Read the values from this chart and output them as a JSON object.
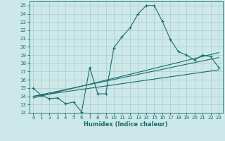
{
  "title": "",
  "xlabel": "Humidex (Indice chaleur)",
  "xlim": [
    -0.5,
    23.5
  ],
  "ylim": [
    12,
    25.5
  ],
  "xticks": [
    0,
    1,
    2,
    3,
    4,
    5,
    6,
    7,
    8,
    9,
    10,
    11,
    12,
    13,
    14,
    15,
    16,
    17,
    18,
    19,
    20,
    21,
    22,
    23
  ],
  "yticks": [
    12,
    13,
    14,
    15,
    16,
    17,
    18,
    19,
    20,
    21,
    22,
    23,
    24,
    25
  ],
  "bg_color": "#cde8e8",
  "grid_color": "#b0d0d0",
  "line_color": "#1a6b6b",
  "line1_x": [
    0,
    1,
    2,
    3,
    4,
    5,
    6,
    7,
    8,
    9,
    10,
    11,
    12,
    13,
    14,
    15,
    16,
    17,
    18,
    19,
    20,
    21,
    22,
    23
  ],
  "line1_y": [
    15.0,
    14.1,
    13.7,
    13.8,
    13.1,
    13.3,
    12.1,
    17.5,
    14.3,
    14.3,
    19.9,
    21.2,
    22.3,
    24.0,
    25.0,
    25.0,
    23.1,
    20.9,
    19.4,
    19.0,
    18.4,
    19.0,
    18.8,
    17.5
  ],
  "line2_x": [
    0,
    23
  ],
  "line2_y": [
    14.0,
    17.2
  ],
  "line3_x": [
    0,
    23
  ],
  "line3_y": [
    14.0,
    18.7
  ],
  "line4_x": [
    0,
    23
  ],
  "line4_y": [
    13.8,
    19.3
  ]
}
